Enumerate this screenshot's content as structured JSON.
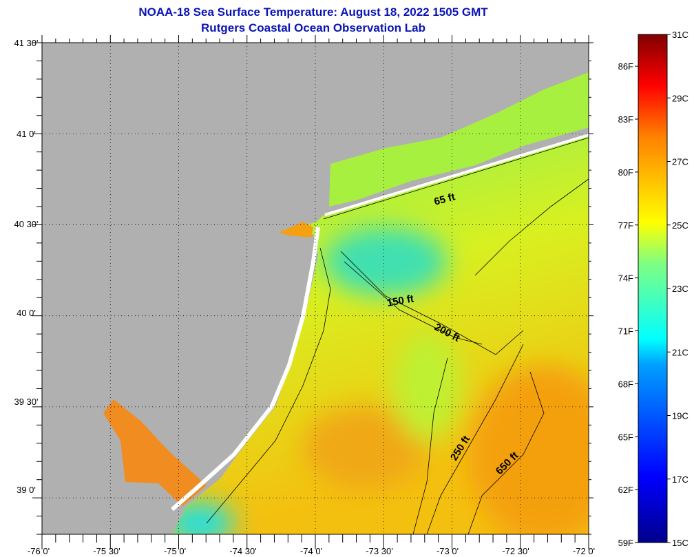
{
  "title": {
    "line1": "NOAA-18 Sea Surface Temperature:  August 18, 2022 1505 GMT",
    "line2": "Rutgers Coastal Ocean Observation Lab"
  },
  "map": {
    "lat_labels": [
      "41 30'",
      "41 0'",
      "40 30'",
      "40 0'",
      "39 30'",
      "39 0'"
    ],
    "lon_labels": [
      "-76 0'",
      "-75 30'",
      "-75 0'",
      "-74 30'",
      "-74 0'",
      "-73 30'",
      "-73 0'",
      "-72 30'",
      "-72 0'"
    ],
    "contour_labels": [
      "65 ft",
      "150 ft",
      "200 ft",
      "250 ft",
      "650 ft"
    ],
    "colors": {
      "land": "#b0b0b0",
      "title": "#0a14b4"
    }
  },
  "colorbar": {
    "fahrenheit_labels": [
      "86F",
      "83F",
      "80F",
      "77F",
      "74F",
      "71F",
      "68F",
      "65F",
      "62F",
      "59F"
    ],
    "celsius_labels": [
      "31C",
      "29C",
      "27C",
      "25C",
      "23C",
      "21C",
      "19C",
      "17C",
      "15C"
    ],
    "range_c": [
      15,
      31
    ]
  }
}
